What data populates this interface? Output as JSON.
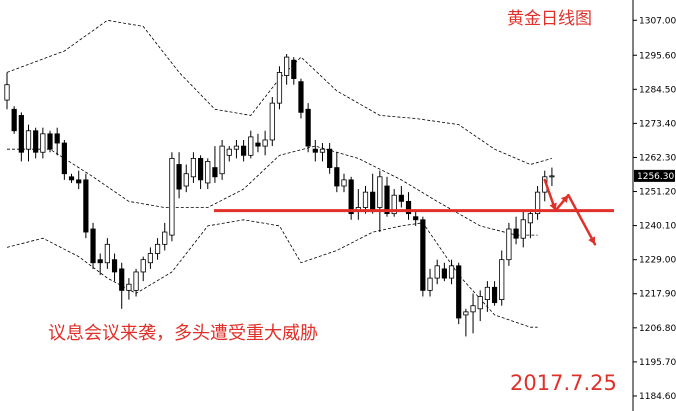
{
  "chart_data": {
    "type": "candlestick",
    "title": "黄金日线图",
    "annotation": "议息会议来袭，多头遭受重大威胁",
    "date_label": "2017.7.25",
    "last_price_label": "1256.30",
    "ylim": [
      1179.7,
      1313.6
    ],
    "y_ticks": [
      "1307.00",
      "1295.60",
      "1284.50",
      "1273.40",
      "1262.30",
      "1251.20",
      "1240.10",
      "1229.00",
      "1217.90",
      "1206.80",
      "1195.70",
      "1184.60"
    ],
    "y_tick_values": [
      1307.0,
      1295.6,
      1284.5,
      1273.4,
      1262.3,
      1251.2,
      1240.1,
      1229.0,
      1217.9,
      1206.8,
      1195.7,
      1184.6
    ],
    "candles": [
      [
        1281.0,
        1290.0,
        1278.0,
        1286.0
      ],
      [
        1278.0,
        1279.0,
        1270.0,
        1271.0
      ],
      [
        1276.0,
        1277.0,
        1261.0,
        1264.0
      ],
      [
        1265.0,
        1273.0,
        1261.0,
        1271.0
      ],
      [
        1271.0,
        1272.0,
        1262.0,
        1264.0
      ],
      [
        1264.0,
        1272.0,
        1262.0,
        1270.0
      ],
      [
        1270.0,
        1271.0,
        1264.0,
        1265.0
      ],
      [
        1270.0,
        1272.0,
        1263.0,
        1267.0
      ],
      [
        1267.0,
        1268.0,
        1255.0,
        1257.0
      ],
      [
        1256.0,
        1257.0,
        1254.0,
        1255.0
      ],
      [
        1255.0,
        1258.0,
        1252.0,
        1254.0
      ],
      [
        1255.0,
        1257.0,
        1236.0,
        1238.0
      ],
      [
        1239.0,
        1241.0,
        1226.0,
        1228.0
      ],
      [
        1229.0,
        1231.0,
        1224.0,
        1228.0
      ],
      [
        1228.0,
        1236.0,
        1226.0,
        1234.0
      ],
      [
        1229.0,
        1231.0,
        1222.0,
        1225.0
      ],
      [
        1226.0,
        1228.0,
        1213.0,
        1219.0
      ],
      [
        1219.0,
        1223.0,
        1216.0,
        1221.0
      ],
      [
        1219.0,
        1226.0,
        1217.0,
        1225.0
      ],
      [
        1225.0,
        1230.0,
        1222.0,
        1229.0
      ],
      [
        1228.0,
        1233.0,
        1226.0,
        1231.0
      ],
      [
        1231.0,
        1236.0,
        1229.0,
        1234.0
      ],
      [
        1234.0,
        1241.0,
        1232.0,
        1238.0
      ],
      [
        1237.0,
        1264.0,
        1235.0,
        1262.0
      ],
      [
        1260.0,
        1264.0,
        1249.0,
        1252.0
      ],
      [
        1253.0,
        1260.0,
        1251.0,
        1257.0
      ],
      [
        1256.0,
        1264.0,
        1254.0,
        1262.0
      ],
      [
        1262.0,
        1263.0,
        1252.0,
        1255.0
      ],
      [
        1254.0,
        1262.0,
        1252.0,
        1261.0
      ],
      [
        1259.0,
        1266.0,
        1254.0,
        1256.0
      ],
      [
        1257.0,
        1268.0,
        1255.0,
        1266.0
      ],
      [
        1263.0,
        1266.0,
        1261.0,
        1265.0
      ],
      [
        1265.0,
        1268.0,
        1262.0,
        1266.0
      ],
      [
        1266.0,
        1268.0,
        1261.0,
        1263.0
      ],
      [
        1263.0,
        1271.0,
        1262.0,
        1269.0
      ],
      [
        1267.0,
        1270.0,
        1264.0,
        1266.0
      ],
      [
        1266.0,
        1271.0,
        1263.0,
        1268.0
      ],
      [
        1268.0,
        1282.0,
        1266.0,
        1280.0
      ],
      [
        1280.0,
        1292.0,
        1278.0,
        1290.0
      ],
      [
        1289.0,
        1296.0,
        1286.0,
        1295.0
      ],
      [
        1294.0,
        1295.0,
        1286.0,
        1288.0
      ],
      [
        1287.0,
        1288.0,
        1275.0,
        1277.0
      ],
      [
        1278.0,
        1280.0,
        1264.0,
        1266.0
      ],
      [
        1265.0,
        1268.0,
        1261.0,
        1264.0
      ],
      [
        1264.0,
        1267.0,
        1261.0,
        1265.0
      ],
      [
        1265.0,
        1267.0,
        1257.0,
        1259.0
      ],
      [
        1259.0,
        1264.0,
        1251.0,
        1253.0
      ],
      [
        1253.0,
        1257.0,
        1251.0,
        1255.0
      ],
      [
        1255.0,
        1256.0,
        1242.0,
        1244.0
      ],
      [
        1245.0,
        1252.0,
        1242.0,
        1246.0
      ],
      [
        1246.0,
        1253.0,
        1244.0,
        1251.0
      ],
      [
        1251.0,
        1257.0,
        1244.0,
        1245.0
      ],
      [
        1246.0,
        1258.0,
        1238.0,
        1256.0
      ],
      [
        1253.0,
        1256.0,
        1243.0,
        1244.0
      ],
      [
        1244.0,
        1252.0,
        1243.0,
        1250.0
      ],
      [
        1250.0,
        1253.0,
        1246.0,
        1248.0
      ],
      [
        1248.0,
        1251.0,
        1242.0,
        1244.0
      ],
      [
        1243.0,
        1245.0,
        1240.0,
        1242.0
      ],
      [
        1242.0,
        1243.0,
        1217.0,
        1219.0
      ],
      [
        1219.0,
        1226.0,
        1217.0,
        1223.0
      ],
      [
        1223.0,
        1229.0,
        1221.0,
        1227.0
      ],
      [
        1226.0,
        1228.0,
        1222.0,
        1223.0
      ],
      [
        1223.0,
        1229.0,
        1221.0,
        1227.0
      ],
      [
        1227.0,
        1228.0,
        1208.0,
        1210.0
      ],
      [
        1211.0,
        1213.0,
        1204.0,
        1212.0
      ],
      [
        1212.0,
        1218.0,
        1205.0,
        1214.0
      ],
      [
        1213.0,
        1219.0,
        1209.0,
        1217.0
      ],
      [
        1216.0,
        1222.0,
        1212.0,
        1220.0
      ],
      [
        1220.0,
        1222.0,
        1214.0,
        1215.0
      ],
      [
        1216.0,
        1232.0,
        1214.0,
        1229.0
      ],
      [
        1229.0,
        1241.0,
        1227.0,
        1239.0
      ],
      [
        1239.0,
        1243.0,
        1234.0,
        1236.0
      ],
      [
        1236.0,
        1245.0,
        1233.0,
        1242.0
      ],
      [
        1241.0,
        1245.0,
        1236.0,
        1244.0
      ],
      [
        1244.0,
        1253.0,
        1242.0,
        1251.0
      ],
      [
        1251.0,
        1258.0,
        1248.0,
        1256.0
      ],
      [
        1256.0,
        1259.0,
        1253.0,
        1256.3
      ]
    ],
    "bands": {
      "upper": [
        [
          0,
          1290
        ],
        [
          8,
          1297
        ],
        [
          14,
          1307
        ],
        [
          19,
          1305
        ],
        [
          24,
          1290
        ],
        [
          29,
          1278
        ],
        [
          34,
          1276
        ],
        [
          38,
          1288
        ],
        [
          41,
          1295
        ],
        [
          46,
          1284
        ],
        [
          52,
          1276
        ],
        [
          57,
          1275
        ],
        [
          63,
          1273
        ],
        [
          68,
          1265
        ],
        [
          73,
          1260
        ],
        [
          76,
          1262
        ]
      ],
      "middle": [
        [
          0,
          1265
        ],
        [
          6,
          1265
        ],
        [
          12,
          1256
        ],
        [
          17,
          1248
        ],
        [
          22,
          1246
        ],
        [
          28,
          1246
        ],
        [
          33,
          1252
        ],
        [
          38,
          1263
        ],
        [
          43,
          1266
        ],
        [
          49,
          1262
        ],
        [
          55,
          1255
        ],
        [
          60,
          1248
        ],
        [
          66,
          1240
        ],
        [
          71,
          1237
        ],
        [
          74,
          1237
        ]
      ],
      "lower": [
        [
          0,
          1233
        ],
        [
          5,
          1236
        ],
        [
          10,
          1230
        ],
        [
          14,
          1223
        ],
        [
          18,
          1218
        ],
        [
          23,
          1225
        ],
        [
          28,
          1240
        ],
        [
          33,
          1242
        ],
        [
          38,
          1240
        ],
        [
          41,
          1228
        ],
        [
          46,
          1232
        ],
        [
          51,
          1238
        ],
        [
          55,
          1240
        ],
        [
          58,
          1241
        ],
        [
          63,
          1224
        ],
        [
          68,
          1211
        ],
        [
          73,
          1207
        ],
        [
          74,
          1207
        ]
      ]
    },
    "horizontal_line": 1245.0,
    "forecast_path": [
      [
        75.0,
        1255.0
      ],
      [
        76.5,
        1245.0
      ],
      [
        78.3,
        1250.0
      ],
      [
        82.0,
        1234.0
      ]
    ],
    "colors": {
      "accent": "#e0302a",
      "candle_up_body": "#ffffff",
      "candle_down_body": "#000000",
      "wick": "#000000"
    }
  }
}
